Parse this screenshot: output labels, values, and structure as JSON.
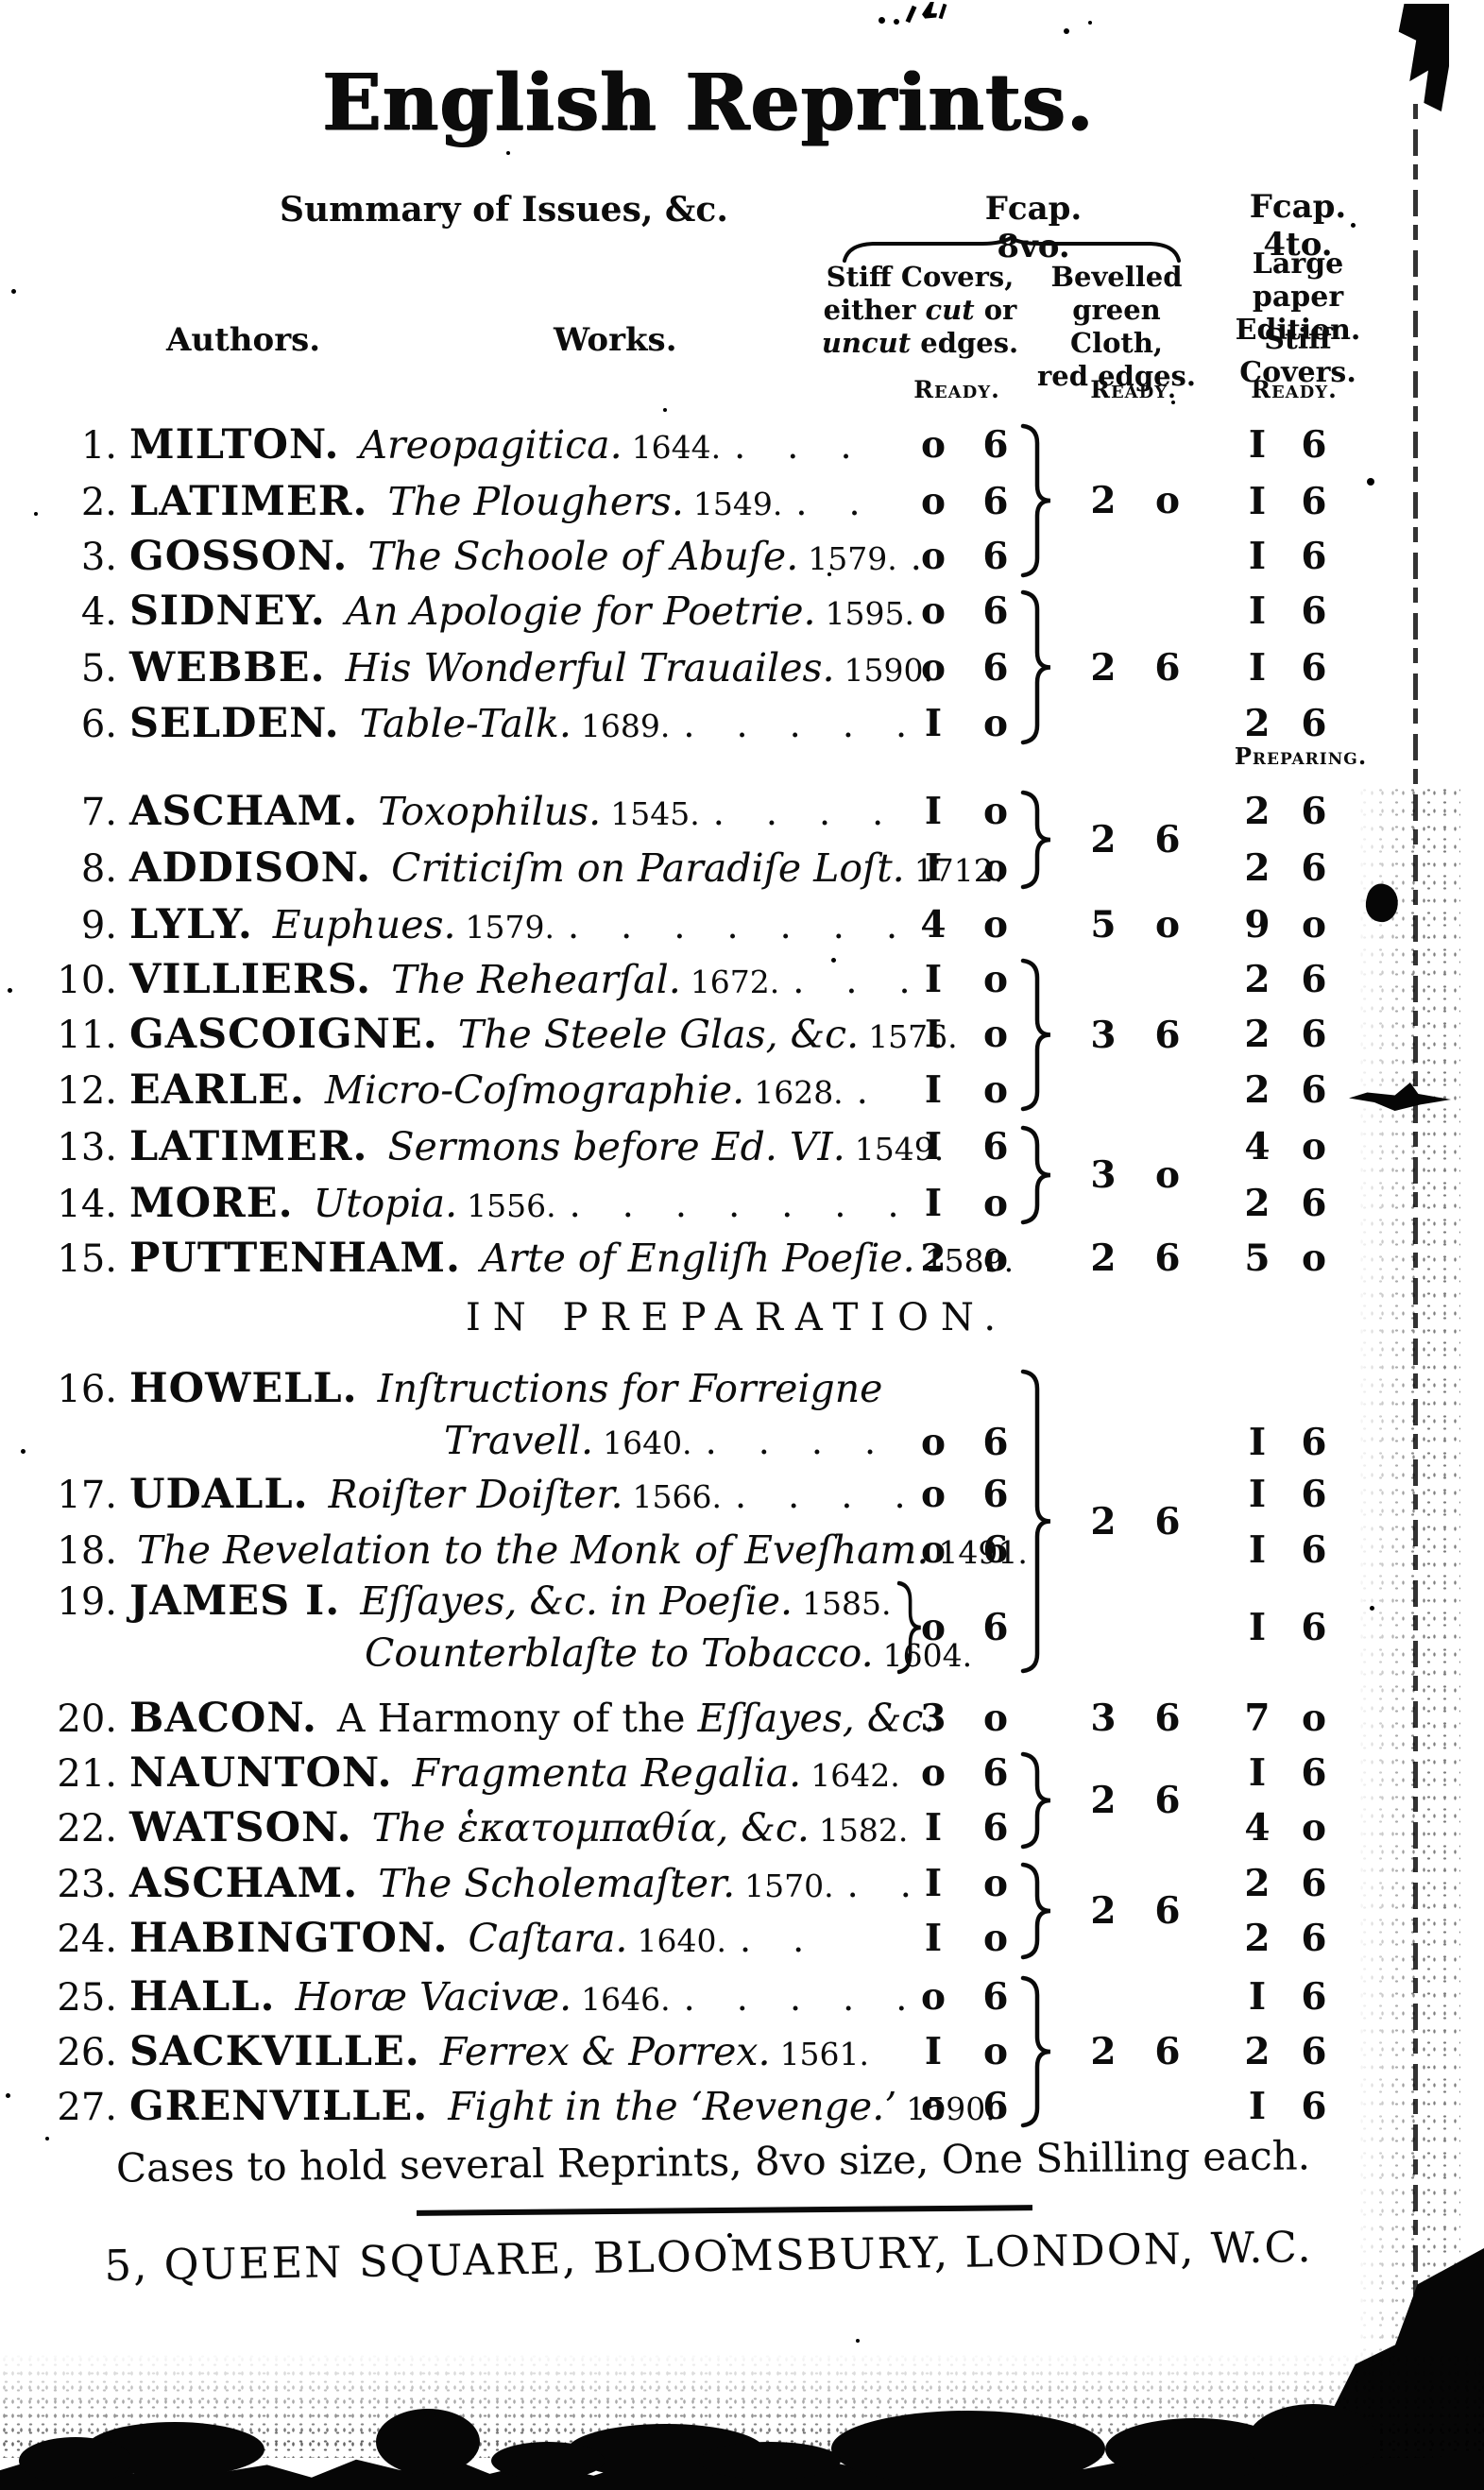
{
  "title": "English Reprints.",
  "labels": {
    "summary": "Summary of Issues, &c.",
    "authors": "Authors.",
    "works": "Works.",
    "ready": "Ready.",
    "preparing": "Preparing.",
    "in_preparation": "IN PREPARATION."
  },
  "header": {
    "fcap8vo": {
      "title": "Fcap. 8vo.",
      "covers_lines": [
        "Stiff Covers,",
        "either *cut* or",
        "*uncut* edges."
      ],
      "cloth_lines": [
        "Bevelled",
        "green Cloth,",
        "red edges."
      ]
    },
    "fcap4to": {
      "title": "Fcap. 4to.",
      "lines": [
        "Large paper",
        "Edition."
      ],
      "line3": "Stiff Covers."
    }
  },
  "table": {
    "rows": [
      {
        "num": "1.",
        "author": "MILTON.",
        "work": "Areopagitica.",
        "date": "1644.",
        "dots": ". . .",
        "covers_price": "0 6",
        "paper_price": "1 6"
      },
      {
        "num": "2.",
        "author": "LATIMER.",
        "work": "The Ploughers.",
        "date": "1549.",
        "dots": ". .",
        "covers_price": "0 6",
        "paper_price": "1 6"
      },
      {
        "num": "3.",
        "author": "GOSSON.",
        "work": "The Schoole of Abuſe.",
        "date": "1579.",
        "dots": ".",
        "covers_price": "0 6",
        "paper_price": "1 6"
      },
      {
        "num": "4.",
        "author": "SIDNEY.",
        "work": "An Apologie for Poetrie.",
        "date": "1595.",
        "dots": "",
        "covers_price": "0 6",
        "paper_price": "1 6"
      },
      {
        "num": "5.",
        "author": "WEBBE.",
        "work": "His Wonderful Trauailes.",
        "date": "1590.",
        "dots": "",
        "covers_price": "0 6",
        "paper_price": "1 6"
      },
      {
        "num": "6.",
        "author": "SELDEN.",
        "work": "Table-Talk.",
        "date": "1689.",
        "dots": ". . . . .",
        "covers_price": "1 0",
        "paper_price": "2 6"
      },
      {
        "num": "7.",
        "author": "ASCHAM.",
        "work": "Toxophilus.",
        "date": "1545.",
        "dots": ". . . .",
        "covers_price": "1 0",
        "paper_price": "2 6"
      },
      {
        "num": "8.",
        "author": "ADDISON.",
        "work": "Criticiſm on Paradiſe Loſt.",
        "date": "1712.",
        "dots": "",
        "covers_price": "1 0",
        "paper_price": "2 6"
      },
      {
        "num": "9.",
        "author": "LYLY.",
        "work": "Euphues.",
        "date": "1579.",
        "dots": ". . . . . . .",
        "covers_price": "4 0",
        "paper_price": "9 0"
      },
      {
        "num": "10.",
        "author": "VILLIERS.",
        "work": "The Rehearſal.",
        "date": "1672.",
        "dots": ". . .",
        "covers_price": "1 0",
        "paper_price": "2 6"
      },
      {
        "num": "11.",
        "author": "GASCOIGNE.",
        "work": "The Steele Glas, &c.",
        "date": "1576.",
        "dots": "",
        "covers_price": "1 0",
        "paper_price": "2 6"
      },
      {
        "num": "12.",
        "author": "EARLE.",
        "work": "Micro-Coſmographie.",
        "date": "1628.",
        "dots": ".",
        "covers_price": "1 0",
        "paper_price": "2 6"
      },
      {
        "num": "13.",
        "author": "LATIMER.",
        "work": "Sermons before Ed. VI.",
        "date": "1549.",
        "dots": "",
        "covers_price": "1 6",
        "paper_price": "4 0"
      },
      {
        "num": "14.",
        "author": "MORE.",
        "work": "Utopia.",
        "date": "1556.",
        "dots": ". . . . . . .",
        "covers_price": "1 0",
        "paper_price": "2 6"
      },
      {
        "num": "15.",
        "author": "PUTTENHAM.",
        "work": "Arte of Engliſh Poeſie.",
        "date": "1589.",
        "dots": "",
        "covers_price": "2 0",
        "paper_price": "5 0"
      },
      {
        "num": "16.",
        "author": "HOWELL.",
        "work": "Inſtructions for Forreigne",
        "work2": "Travell.",
        "date2": "1640.",
        "dots2": ". . . .",
        "covers_price": "0 6",
        "paper_price": "1 6"
      },
      {
        "num": "17.",
        "author": "UDALL.",
        "work": "Roiſter Doiſter.",
        "date": "1566.",
        "dots": ". . . .",
        "covers_price": "0 6",
        "paper_price": "1 6"
      },
      {
        "num": "18.",
        "author": "",
        "work": "The Revelation to the Monk of Eveſham.",
        "date": "1491.",
        "dots": "",
        "covers_price": "0 6",
        "paper_price": "1 6"
      },
      {
        "num": "19.",
        "author": "JAMES I.",
        "work": "Eſſayes, &c. in Poeſie.",
        "date": "1585.",
        "work2": "Counterblaſte to Tobacco.",
        "date2": "1604.",
        "covers_price": "0 6",
        "paper_price": "1 6"
      },
      {
        "num": "20.",
        "author": "BACON.",
        "work_roman": "A Harmony of the ",
        "work": "Eſſayes, &c.",
        "date": "",
        "dots": "",
        "covers_price": "3 0",
        "paper_price": "7 0"
      },
      {
        "num": "21.",
        "author": "NAUNTON.",
        "work": "Fragmenta Regalia.",
        "date": "1642.",
        "dots": "",
        "covers_price": "0 6",
        "paper_price": "1 6"
      },
      {
        "num": "22.",
        "author": "WATSON.",
        "work": "The ἑκατομπαθία, &c.",
        "date": "1582.",
        "dots": "",
        "covers_price": "1 6",
        "paper_price": "4 0"
      },
      {
        "num": "23.",
        "author": "ASCHAM.",
        "work": "The Scholemaſter.",
        "date": "1570.",
        "dots": ". .",
        "covers_price": "1 0",
        "paper_price": "2 6"
      },
      {
        "num": "24.",
        "author": "HABINGTON.",
        "work": "Caſtara.",
        "date": "1640.",
        "dots": ". .",
        "covers_price": "1 0",
        "paper_price": "2 6"
      },
      {
        "num": "25.",
        "author": "HALL.",
        "work": "Horæ Vacivæ.",
        "date": "1646.",
        "dots": ". . . . .",
        "covers_price": "0 6",
        "paper_price": "1 6"
      },
      {
        "num": "26.",
        "author": "SACKVILLE.",
        "work": "Ferrex & Porrex.",
        "date": "1561.",
        "dots": "",
        "covers_price": "1 0",
        "paper_price": "2 6"
      },
      {
        "num": "27.",
        "author": "GRENVILLE.",
        "work": "Fight in the ‘Revenge.’",
        "date": "1590.",
        "dots": "",
        "covers_price": "0 6",
        "paper_price": "1 6"
      }
    ],
    "cloth_groups": [
      {
        "rows": "1-3",
        "price": "2 0",
        "brace": true
      },
      {
        "rows": "4-6",
        "price": "2 6",
        "brace": true
      },
      {
        "rows": "7-8",
        "price": "2 6",
        "brace": true
      },
      {
        "rows": "9",
        "price": "5 0",
        "brace": false
      },
      {
        "rows": "10-12",
        "price": "3 6",
        "brace": true
      },
      {
        "rows": "13-14",
        "price": "3 0",
        "brace": true
      },
      {
        "rows": "15",
        "price": "2 6",
        "brace": false
      },
      {
        "rows": "16-19",
        "price": "2 6",
        "brace": true
      },
      {
        "rows": "20",
        "price": "3 6",
        "brace": false
      },
      {
        "rows": "21-22",
        "price": "2 6",
        "brace": true
      },
      {
        "rows": "23-24",
        "price": "2 6",
        "brace": true
      },
      {
        "rows": "25-27",
        "price": "2 6",
        "brace": true
      }
    ]
  },
  "footer": {
    "cases_note": "Cases to hold several Reprints, 8vo size, One Shilling each.",
    "address": "5, QUEEN SQUARE, BLOOMSBURY, LONDON, W.C."
  },
  "colors": {
    "ink": "#0c0c0c",
    "paper": "#ffffff"
  }
}
